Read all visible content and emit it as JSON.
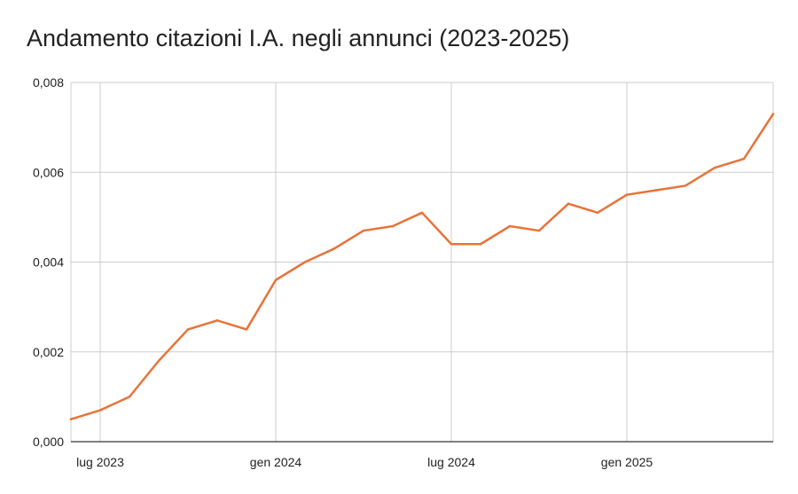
{
  "chart_data": {
    "type": "line",
    "title": "Andamento citazioni I.A. negli annunci (2023-2025)",
    "xlabel": "",
    "ylabel": "",
    "x": [
      "2023-06",
      "2023-07",
      "2023-08",
      "2023-09",
      "2023-10",
      "2023-11",
      "2023-12",
      "2024-01",
      "2024-02",
      "2024-03",
      "2024-04",
      "2024-05",
      "2024-06",
      "2024-07",
      "2024-08",
      "2024-09",
      "2024-10",
      "2024-11",
      "2024-12",
      "2025-01",
      "2025-02",
      "2025-03",
      "2025-04",
      "2025-05",
      "2025-06"
    ],
    "series": [
      {
        "values": [
          0.0005,
          0.0007,
          0.001,
          0.0018,
          0.0025,
          0.0027,
          0.0025,
          0.0036,
          0.004,
          0.0043,
          0.0047,
          0.0048,
          0.0051,
          0.0044,
          0.0044,
          0.0048,
          0.0047,
          0.0053,
          0.0051,
          0.0055,
          0.0056,
          0.0057,
          0.0061,
          0.0063,
          0.0073
        ]
      }
    ],
    "ylim": [
      0,
      0.008
    ],
    "yticks": [
      0,
      0.002,
      0.004,
      0.006,
      0.008
    ],
    "ytick_labels": [
      "0,000",
      "0,002",
      "0,004",
      "0,006",
      "0,008"
    ],
    "xticks": [
      "2023-07",
      "2024-01",
      "2024-07",
      "2025-01"
    ],
    "xtick_labels": [
      "lug 2023",
      "gen 2024",
      "lug 2024",
      "gen 2025"
    ],
    "grid": true,
    "line_color": "#e8733a",
    "grid_color": "#cccccc",
    "axis_color": "#333333"
  }
}
